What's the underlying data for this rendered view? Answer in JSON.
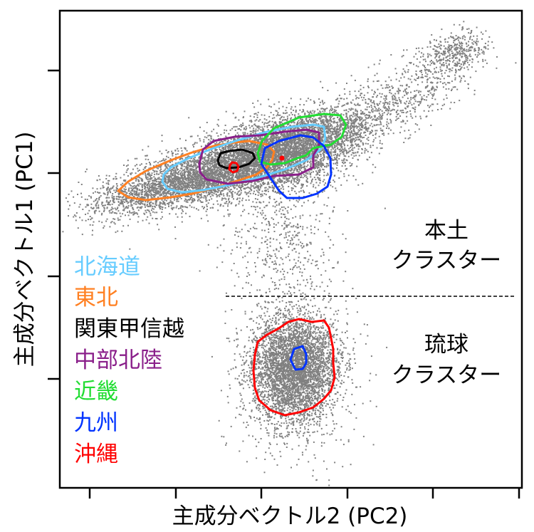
{
  "chart_data": {
    "type": "scatter",
    "title": "",
    "xlabel": "主成分ベクトル2 (PC2)",
    "ylabel": "主成分ベクトル1 (PC1)",
    "grid": false,
    "x_ticks_count": 6,
    "y_ticks_count": 4,
    "tick_labels_shown": false,
    "legend_position": "lower-left (inside plot)",
    "legend": [
      {
        "label": "北海道",
        "color": "#66ccff"
      },
      {
        "label": "東北",
        "color": "#ff8022"
      },
      {
        "label": "関東甲信越",
        "color": "#000000"
      },
      {
        "label": "中部北陸",
        "color": "#8a1f8a"
      },
      {
        "label": "近畿",
        "color": "#22dd33"
      },
      {
        "label": "九州",
        "color": "#0033ff"
      },
      {
        "label": "沖縄",
        "color": "#ff0000"
      }
    ],
    "annotations": [
      {
        "text_lines": [
          "本土",
          "クラスター"
        ],
        "meaning": "Mainland cluster (above dashed line)"
      },
      {
        "text_lines": [
          "琉球",
          "クラスター"
        ],
        "meaning": "Ryukyu cluster (below dashed line)"
      }
    ],
    "separator": {
      "style": "dashed",
      "orientation": "horizontal",
      "position": "between mainland and Ryukyu clusters"
    },
    "point_color": "#808080",
    "clusters": [
      {
        "name": "本土 main elongated cloud",
        "description": "dense diagonal band rising from lower-left to upper-right"
      },
      {
        "name": "upper-right outlier group",
        "description": "small dense cluster at top right"
      },
      {
        "name": "琉球 cluster",
        "description": "roundish dense cloud below dashed line"
      },
      {
        "name": "bridge",
        "description": "sparse points connecting mainland and Ryukyu clusters"
      }
    ],
    "contours": [
      {
        "region": "北海道",
        "color": "#66ccff",
        "shape": "elongated ellipse over mainland cluster"
      },
      {
        "region": "東北",
        "color": "#ff8022",
        "shape": "long pointed contour extending left"
      },
      {
        "region": "関東甲信越",
        "color": "#000000",
        "shape": "small ellipse near mainland center"
      },
      {
        "region": "中部北陸",
        "color": "#8a1f8a",
        "shape": "medium contour around mainland center"
      },
      {
        "region": "近畿",
        "color": "#22dd33",
        "shape": "ellipse on upper-right of mainland"
      },
      {
        "region": "九州",
        "color": "#0033ff",
        "shape": "round contour right-lower of mainland center; small contour inside Ryukyu cluster"
      },
      {
        "region": "沖縄",
        "color": "#ff0000",
        "shape": "tiny circle in mainland; large contour around Ryukyu cluster"
      }
    ]
  },
  "axes": {
    "xlabel": "主成分ベクトル2 (PC2)",
    "ylabel": "主成分ベクトル1 (PC1)"
  },
  "legend": {
    "items": [
      {
        "label": "北海道",
        "color": "#66ccff"
      },
      {
        "label": "東北",
        "color": "#ff8022"
      },
      {
        "label": "関東甲信越",
        "color": "#000000"
      },
      {
        "label": "中部北陸",
        "color": "#8a1f8a"
      },
      {
        "label": "近畿",
        "color": "#22dd33"
      },
      {
        "label": "九州",
        "color": "#0033ff"
      },
      {
        "label": "沖縄",
        "color": "#ff0000"
      }
    ]
  },
  "annotations": {
    "mainland": {
      "line1": "本土",
      "line2": "クラスター"
    },
    "ryukyu": {
      "line1": "琉球",
      "line2": "クラスター"
    }
  }
}
